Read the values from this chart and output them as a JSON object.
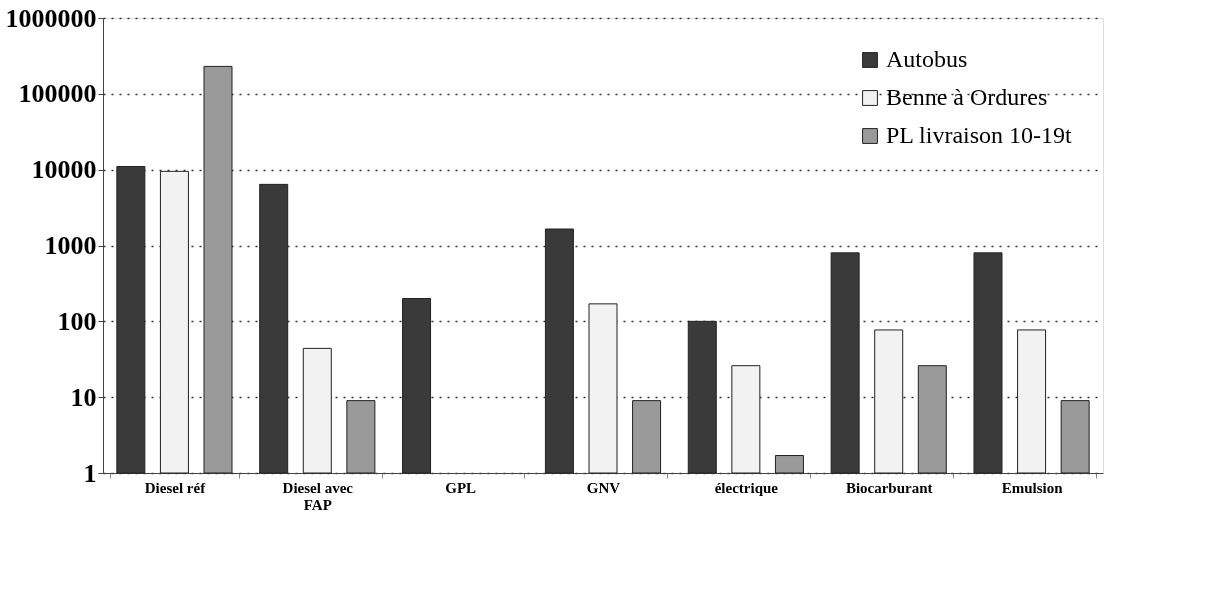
{
  "chart_data": {
    "type": "bar",
    "categories": [
      "Diesel réf",
      "Diesel avec FAP",
      "GPL",
      "GNV",
      "électrique",
      "Biocarburant",
      "Emulsion"
    ],
    "series": [
      {
        "name": "Autobus",
        "color": "#3a3a3a",
        "values": [
          11000,
          6400,
          200,
          1650,
          100,
          800,
          800
        ]
      },
      {
        "name": "Benne à Ordures",
        "color": "#f2f2f2",
        "values": [
          9500,
          44,
          null,
          170,
          26,
          77,
          77
        ]
      },
      {
        "name": "PL livraison 10-19t",
        "color": "#9a9a9a",
        "values": [
          230000,
          9,
          null,
          9,
          1.7,
          26,
          9
        ]
      }
    ],
    "log": "y",
    "ylim": [
      1,
      1000000
    ],
    "yticks": [
      1,
      10,
      100,
      1000,
      10000,
      100000,
      1000000
    ],
    "grid": "y",
    "legend": "top right"
  }
}
